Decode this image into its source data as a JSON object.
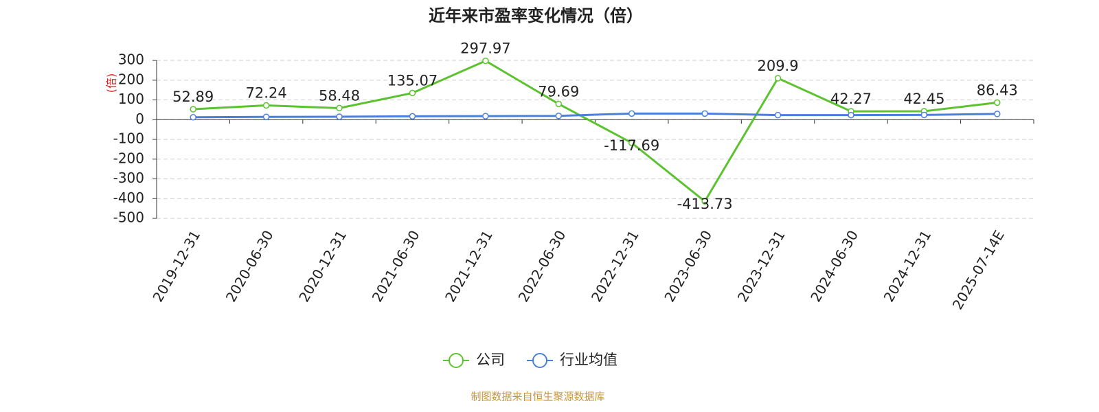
{
  "chart_data": {
    "type": "line",
    "title": "近年来市盈率变化情况（倍）",
    "y_label": "(倍)",
    "categories": [
      "2019-12-31",
      "2020-06-30",
      "2020-12-31",
      "2021-06-30",
      "2021-12-31",
      "2022-06-30",
      "2022-12-31",
      "2023-06-30",
      "2023-12-31",
      "2024-06-30",
      "2024-12-31",
      "2025-07-14E"
    ],
    "series": [
      {
        "name": "公司",
        "color": "#5cc22f",
        "values": [
          52.89,
          72.24,
          58.48,
          135.07,
          297.97,
          79.69,
          -117.69,
          -413.73,
          209.9,
          42.27,
          42.45,
          86.43
        ]
      },
      {
        "name": "行业均值",
        "color": "#4a7fdc",
        "values": [
          12,
          14,
          15,
          17,
          18,
          19,
          31,
          31,
          23,
          23,
          24,
          29
        ]
      }
    ],
    "ylim": [
      -500,
      300
    ],
    "yticks": [
      -500,
      -400,
      -300,
      -200,
      -100,
      0,
      100,
      200,
      300
    ],
    "grid": true,
    "source": "制图数据来自恒生聚源数据库"
  }
}
